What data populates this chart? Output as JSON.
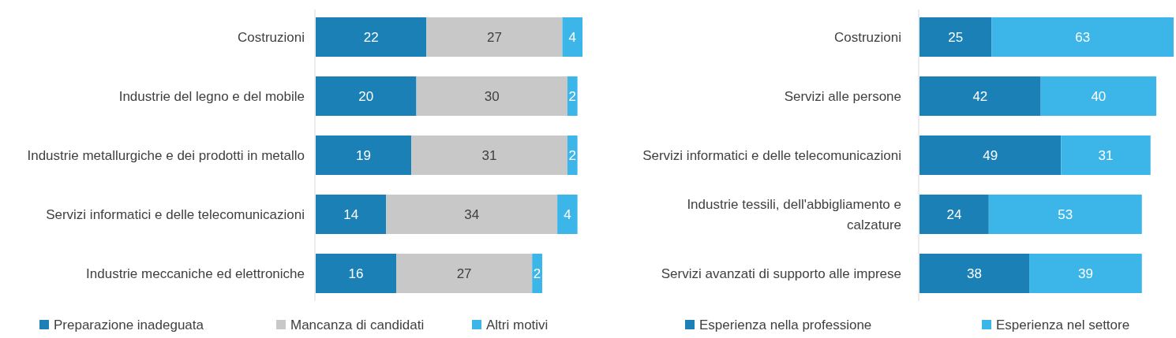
{
  "chart_data": [
    {
      "type": "bar",
      "orientation": "horizontal",
      "stacked": true,
      "data_labels": true,
      "legend": "bottom",
      "categories": [
        "Costruzioni",
        "Industrie del legno e del mobile",
        "Industrie metallurgiche e dei prodotti in metallo",
        "Servizi informatici e delle telecomunicazioni",
        "Industrie meccaniche ed elettroniche"
      ],
      "series": [
        {
          "name": "Preparazione inadeguata",
          "color": "#1a80b6",
          "values": [
            22,
            20,
            19,
            14,
            16
          ]
        },
        {
          "name": "Mancanza di candidati",
          "color": "#c8c8c8",
          "values": [
            27,
            30,
            31,
            34,
            27
          ]
        },
        {
          "name": "Altri motivi",
          "color": "#3cb6e9",
          "values": [
            4,
            2,
            2,
            4,
            2
          ]
        }
      ]
    },
    {
      "type": "bar",
      "orientation": "horizontal",
      "stacked": true,
      "data_labels": true,
      "legend": "bottom",
      "categories": [
        "Costruzioni",
        "Servizi alle persone",
        "Servizi informatici e delle telecomunicazioni",
        "Industrie tessili, dell'abbigliamento e calzature",
        "Servizi avanzati di supporto alle imprese"
      ],
      "series": [
        {
          "name": "Esperienza nella professione",
          "color": "#1a80b6",
          "values": [
            25,
            42,
            49,
            24,
            38
          ]
        },
        {
          "name": "Esperienza nel settore",
          "color": "#3cb6e9",
          "values": [
            63,
            40,
            31,
            53,
            39
          ]
        }
      ]
    }
  ]
}
